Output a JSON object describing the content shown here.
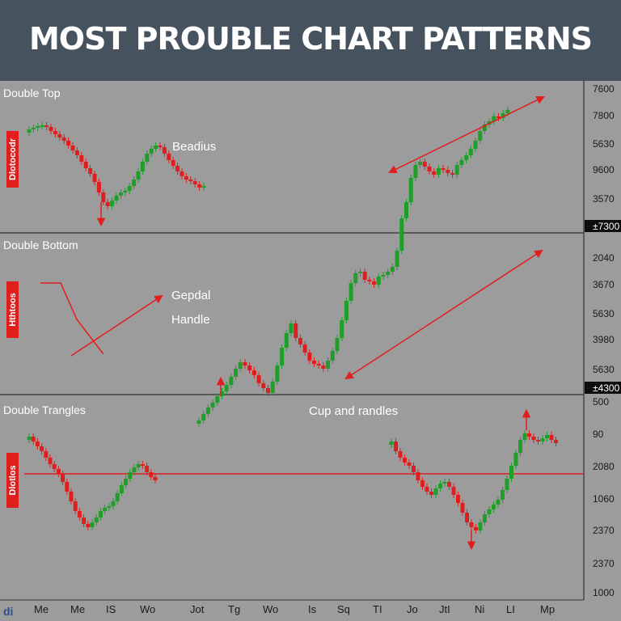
{
  "header": {
    "title": "MOST PROUBLE CHART PATTERNS"
  },
  "watermark": "di",
  "chart_data": {
    "type": "candlestick",
    "title": "MOST PROUBLE CHART PATTERNS",
    "panels": [
      "Double Top",
      "Double Bottom",
      "Double Trangles"
    ],
    "annotations": [
      "Beadius",
      "Gepdal",
      "Handle",
      "Cup and randles"
    ],
    "vertical_labels": [
      "Dlotocodr",
      "Hthtoos",
      "Dlotlos"
    ],
    "y_tick_labels": [
      "7600",
      "7800",
      "5630",
      "9600",
      "3570",
      "±7300",
      "2040",
      "3670",
      "5630",
      "3980",
      "5630",
      "±4300",
      "500",
      "90",
      "2080",
      "1060",
      "2370",
      "2370",
      "1000"
    ],
    "x_tick_labels": [
      "Me",
      "Me",
      "IS",
      "Wo",
      "Jot",
      "Tg",
      "Wo",
      "Is",
      "Sq",
      "TI",
      "Jo",
      "JtI",
      "Ni",
      "LI",
      "Mp"
    ],
    "colors": {
      "up": "#1f9e2a",
      "down": "#e01e1e",
      "line": "#e01e1e",
      "grid": "#333333"
    }
  }
}
